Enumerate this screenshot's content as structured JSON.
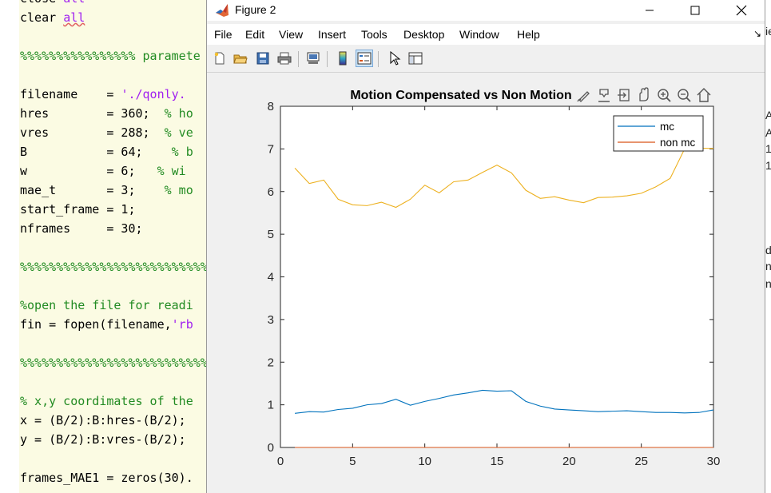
{
  "editor": {
    "lines": [
      {
        "parts": [
          {
            "t": "close ",
            "c": ""
          },
          {
            "t": "all",
            "c": "string"
          }
        ]
      },
      {
        "parts": [
          {
            "t": "clear ",
            "c": ""
          },
          {
            "t": "all",
            "c": "string squiggle"
          }
        ]
      },
      {
        "parts": []
      },
      {
        "parts": [
          {
            "t": "%%%%%%%%%%%%%%%% paramete",
            "c": "comment"
          }
        ]
      },
      {
        "parts": []
      },
      {
        "parts": [
          {
            "t": "filename    = ",
            "c": ""
          },
          {
            "t": "'./qonly.",
            "c": "string"
          }
        ]
      },
      {
        "parts": [
          {
            "t": "hres        = 360;  ",
            "c": ""
          },
          {
            "t": "% ho",
            "c": "comment"
          }
        ]
      },
      {
        "parts": [
          {
            "t": "vres        = 288;  ",
            "c": ""
          },
          {
            "t": "% ve",
            "c": "comment"
          }
        ]
      },
      {
        "parts": [
          {
            "t": "B           = 64;    ",
            "c": ""
          },
          {
            "t": "% b",
            "c": "comment"
          }
        ]
      },
      {
        "parts": [
          {
            "t": "w           = 6;   ",
            "c": ""
          },
          {
            "t": "% wi",
            "c": "comment"
          }
        ]
      },
      {
        "parts": [
          {
            "t": "mae_t       = 3;    ",
            "c": ""
          },
          {
            "t": "% mo",
            "c": "comment"
          }
        ]
      },
      {
        "parts": [
          {
            "t": "start_frame = 1;",
            "c": ""
          }
        ]
      },
      {
        "parts": [
          {
            "t": "nframes     = 30;",
            "c": ""
          }
        ]
      },
      {
        "parts": []
      },
      {
        "parts": [
          {
            "t": "%%%%%%%%%%%%%%%%%%%%%%%%%%%%",
            "c": "comment"
          }
        ]
      },
      {
        "parts": []
      },
      {
        "parts": [
          {
            "t": "%open the file for readi",
            "c": "comment"
          }
        ]
      },
      {
        "parts": [
          {
            "t": "fin = fopen(filename,",
            "c": ""
          },
          {
            "t": "'rb",
            "c": "string"
          }
        ]
      },
      {
        "parts": []
      },
      {
        "parts": [
          {
            "t": "%%%%%%%%%%%%%%%%%%%%%%%%%%%%",
            "c": "comment"
          }
        ]
      },
      {
        "parts": []
      },
      {
        "parts": [
          {
            "t": "% x,y coordimates of the",
            "c": "comment"
          }
        ]
      },
      {
        "parts": [
          {
            "t": "x = (B/2):B:hres-(B/2);",
            "c": ""
          }
        ]
      },
      {
        "parts": [
          {
            "t": "y = (B/2):B:vres-(B/2);",
            "c": ""
          }
        ]
      },
      {
        "parts": []
      },
      {
        "parts": [
          {
            "t": "frames_MAE1 = zeros(30).",
            "c": ""
          }
        ]
      }
    ],
    "right_edge_fragments": [
      "ie",
      "A",
      "A",
      "1.",
      "1.",
      "d",
      "n",
      "n"
    ]
  },
  "window": {
    "title": "Figure 2",
    "menu": [
      "File",
      "Edit",
      "View",
      "Insert",
      "Tools",
      "Desktop",
      "Window",
      "Help"
    ]
  },
  "toolbar": {
    "buttons": [
      {
        "icon": "new-figure-icon",
        "active": false
      },
      {
        "icon": "open-file-icon",
        "active": false
      },
      {
        "icon": "save-icon",
        "active": false
      },
      {
        "icon": "print-icon",
        "active": false
      },
      {
        "icon": "link-plot-icon",
        "active": false
      },
      {
        "icon": "insert-colorbar-icon",
        "active": false
      },
      {
        "icon": "insert-legend-icon",
        "active": true
      },
      {
        "icon": "edit-plot-icon",
        "active": false
      },
      {
        "icon": "property-inspector-icon",
        "active": false
      }
    ]
  },
  "colors": {
    "mc": "#0072bd",
    "non_mc": "#d95319",
    "third_series": "#edb120",
    "purple_baseline": "#7e2f8e"
  },
  "chart_data": {
    "type": "line",
    "title": "Motion Compensated vs Non Motion",
    "xlabel": "",
    "ylabel": "",
    "xlim": [
      0,
      30
    ],
    "ylim": [
      0,
      8
    ],
    "xticks": [
      0,
      5,
      10,
      15,
      20,
      25,
      30
    ],
    "yticks": [
      0,
      1,
      2,
      3,
      4,
      5,
      6,
      7,
      8
    ],
    "grid": false,
    "legend_position": "top-right",
    "x": [
      1,
      2,
      3,
      4,
      5,
      6,
      7,
      8,
      9,
      10,
      11,
      12,
      13,
      14,
      15,
      16,
      17,
      18,
      19,
      20,
      21,
      22,
      23,
      24,
      25,
      26,
      27,
      28,
      29,
      30
    ],
    "series": [
      {
        "name": "mc",
        "color": "#0072bd",
        "values": [
          0.8,
          0.84,
          0.83,
          0.89,
          0.92,
          1.0,
          1.03,
          1.13,
          0.99,
          1.08,
          1.15,
          1.23,
          1.28,
          1.34,
          1.32,
          1.33,
          1.08,
          0.97,
          0.9,
          0.88,
          0.86,
          0.84,
          0.85,
          0.86,
          0.84,
          0.82,
          0.82,
          0.81,
          0.82,
          0.88
        ]
      },
      {
        "name": "non mc",
        "color": "#d95319",
        "values": [
          0,
          0,
          0,
          0,
          0,
          0,
          0,
          0,
          0,
          0,
          0,
          0,
          0,
          0,
          0,
          0,
          0,
          0,
          0,
          0,
          0,
          0,
          0,
          0,
          0,
          0,
          0,
          0,
          0,
          0
        ]
      },
      {
        "name": "",
        "color": "#edb120",
        "values": [
          6.55,
          6.19,
          6.27,
          5.82,
          5.69,
          5.67,
          5.75,
          5.63,
          5.82,
          6.15,
          5.97,
          6.23,
          6.27,
          6.45,
          6.62,
          6.44,
          6.03,
          5.84,
          5.88,
          5.8,
          5.74,
          5.86,
          5.87,
          5.9,
          5.96,
          6.11,
          6.31,
          7.0,
          7.02,
          7.01
        ]
      },
      {
        "name": "",
        "color": "#7e2f8e",
        "values": [
          0,
          0,
          0,
          0,
          0,
          0,
          0,
          0,
          0,
          0,
          0,
          0,
          0,
          0,
          0,
          0,
          0,
          0,
          0,
          0,
          0,
          0,
          0,
          0,
          0,
          0,
          0,
          0,
          0,
          0
        ]
      }
    ]
  },
  "axes_toolbar": {
    "icons": [
      "brush-icon",
      "data-tips-icon",
      "export-icon",
      "pan-icon",
      "zoom-in-icon",
      "zoom-out-icon",
      "home-icon"
    ]
  }
}
